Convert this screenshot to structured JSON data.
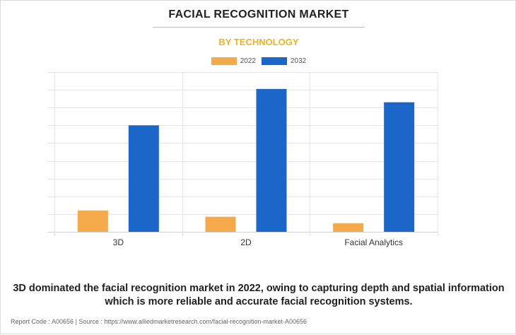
{
  "header": {
    "title": "FACIAL RECOGNITION MARKET",
    "subtitle": "BY TECHNOLOGY"
  },
  "colors": {
    "2022": "#f4a94a",
    "2032": "#1a66c9",
    "subtitle": "#f2b21b"
  },
  "chart_data": {
    "type": "bar",
    "categories": [
      "3D",
      "2D",
      "Facial Analytics"
    ],
    "series": [
      {
        "name": "2022",
        "values": [
          1.2,
          0.85,
          0.48
        ]
      },
      {
        "name": "2032",
        "values": [
          6.0,
          8.05,
          7.3
        ]
      }
    ],
    "ylim": [
      0,
      9
    ],
    "y_tick_count": 9,
    "grid": true,
    "legend_position": "top-center",
    "xlabel": "",
    "ylabel": ""
  },
  "caption": "3D dominated the facial recognition market in 2022, owing to capturing depth and spatial information which is more reliable and accurate facial recognition systems.",
  "footer": "Report Code : A00656  |  Source : https://www.alliedmarketresearch.com/facial-recognition-market-A00656"
}
